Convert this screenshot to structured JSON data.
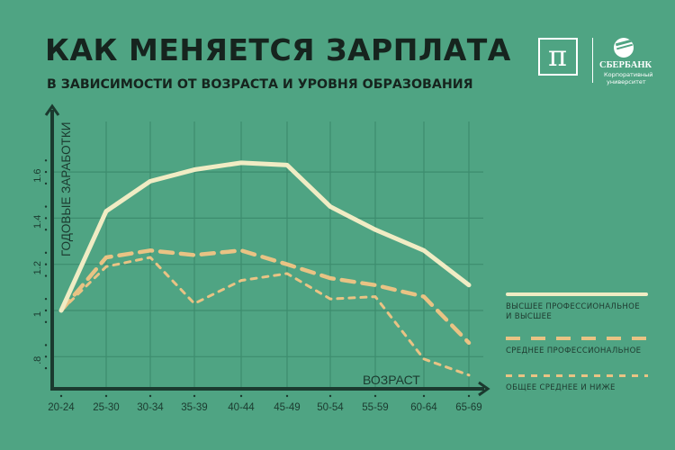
{
  "header": {
    "title": "КАК МЕНЯЕТСЯ ЗАРПЛАТА",
    "subtitle": "В ЗАВИСИМОСТИ ОТ ВОЗРАСТА И УРОВНЯ ОБРАЗОВАНИЯ"
  },
  "logo": {
    "symbol": "π",
    "brand": "СБЕРБАНК",
    "line1": "Корпоративный",
    "line2": "университет"
  },
  "colors": {
    "background": "#4fa483",
    "grid": "#3d8c6e",
    "axis": "#1b3a2f",
    "higher": "#f0ecc4",
    "medium": "#e9c384",
    "lower": "#e9c384"
  },
  "chart_data": {
    "type": "line",
    "title": "КАК МЕНЯЕТСЯ ЗАРПЛАТА",
    "subtitle": "В ЗАВИСИМОСТИ ОТ ВОЗРАСТА И УРОВНЯ ОБРАЗОВАНИЯ",
    "xlabel": "ВОЗРАСТ",
    "ylabel": "ГОДОВЫЕ ЗАРАБОТКИ",
    "categories": [
      "20-24",
      "25-30",
      "30-34",
      "35-39",
      "40-44",
      "45-49",
      "50-54",
      "55-59",
      "60-64",
      "65-69"
    ],
    "yticks": [
      "1.6",
      "1.4",
      "1.2",
      "1",
      ".8"
    ],
    "ytick_values": [
      1.6,
      1.4,
      1.2,
      1.0,
      0.8
    ],
    "ylim": [
      0.7,
      1.8
    ],
    "grid": true,
    "legend_placement": "right",
    "series": [
      {
        "name": "ВЫСШЕЕ ПРОФЕССИОНАЛЬНОЕ И ВЫСШЕЕ",
        "style": "solid",
        "values": [
          1.0,
          1.43,
          1.56,
          1.61,
          1.64,
          1.63,
          1.45,
          1.35,
          1.26,
          1.11
        ]
      },
      {
        "name": "СРЕДНЕЕ ПРОФЕССИОНАЛЬНОЕ",
        "style": "long-dash",
        "values": [
          1.0,
          1.23,
          1.26,
          1.24,
          1.26,
          1.2,
          1.14,
          1.11,
          1.06,
          0.86
        ]
      },
      {
        "name": "ОБЩЕЕ СРЕДНЕЕ И НИЖЕ",
        "style": "short-dash",
        "values": [
          1.0,
          1.19,
          1.23,
          1.03,
          1.13,
          1.16,
          1.05,
          1.06,
          0.79,
          0.72
        ]
      }
    ]
  },
  "legend": {
    "items": [
      {
        "line1": "ВЫСШЕЕ ПРОФЕССИОНАЛЬНОЕ",
        "line2": "И ВЫСШЕЕ"
      },
      {
        "line1": "СРЕДНЕЕ ПРОФЕССИОНАЛЬНОЕ"
      },
      {
        "line1": "ОБЩЕЕ СРЕДНЕЕ И НИЖЕ"
      }
    ]
  }
}
